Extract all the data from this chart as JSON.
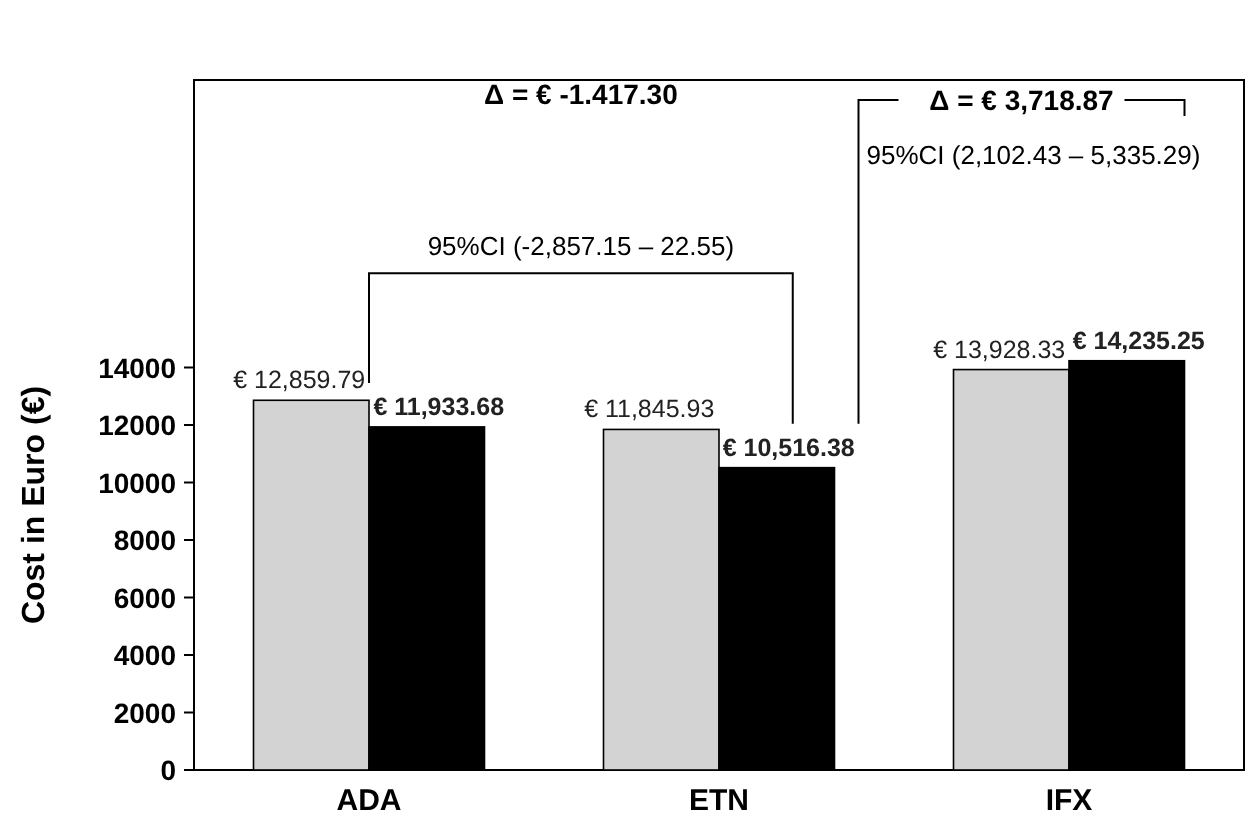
{
  "chart_data": {
    "type": "bar",
    "ylabel": "Cost in Euro (€)",
    "categories": [
      "ADA",
      "ETN",
      "IFX"
    ],
    "series": [
      {
        "color": "#d3d3d3",
        "values": [
          12859.79,
          11845.93,
          13928.33
        ],
        "value_labels": [
          "€ 12,859.79",
          "€ 11,845.93",
          "€ 13,928.33"
        ]
      },
      {
        "color": "#000000",
        "values": [
          11933.68,
          10516.38,
          14235.25
        ],
        "value_labels": [
          "€ 11,933.68",
          "€ 10,516.38",
          "€ 14,235.25"
        ]
      }
    ],
    "ylim": [
      0,
      24000
    ],
    "yticks": [
      0,
      2000,
      4000,
      6000,
      8000,
      10000,
      12000,
      14000
    ],
    "grid": false,
    "annotations": [
      "Δ = € -1.417.30",
      "95%CI (-2,857.15 – 22.55)",
      "Δ = € 3,718.87",
      "95%CI (2,102.43 – 5,335.29)"
    ]
  }
}
